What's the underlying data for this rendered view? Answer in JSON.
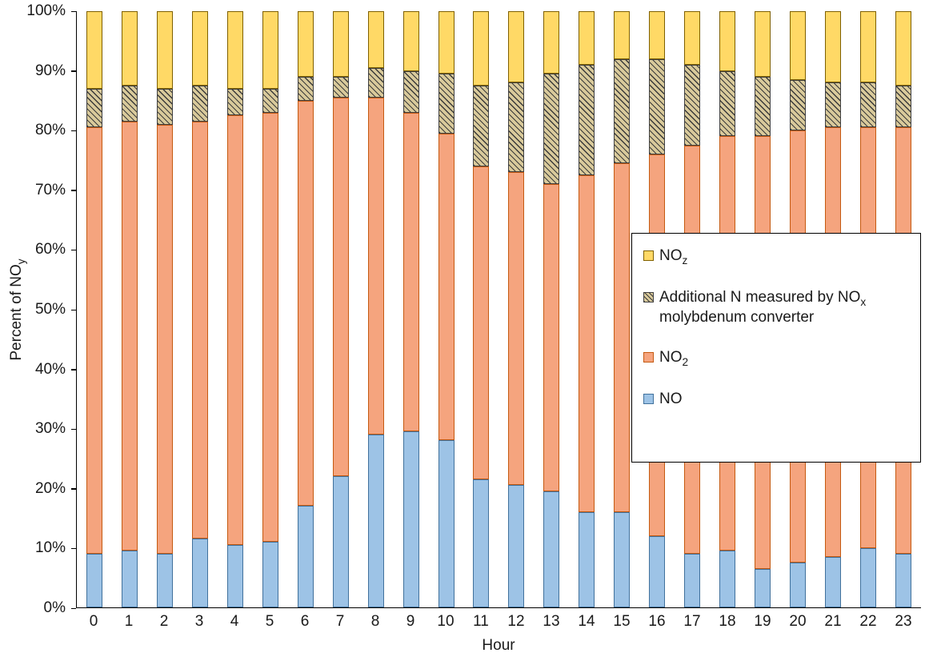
{
  "axes": {
    "x_title": "Hour",
    "y_title_pre": "Percent of NO",
    "y_title_sub": "y"
  },
  "legend": {
    "position": "right-overlay",
    "items": [
      {
        "key": "noz",
        "pre": "NO",
        "sub": "z",
        "post": "",
        "color": "#FFD966"
      },
      {
        "key": "addn",
        "pre": "Additional N measured by NO",
        "sub": "x",
        "post": " molybdenum converter",
        "color": "#D9CA9B",
        "pattern": "diagonal-hatch"
      },
      {
        "key": "no2",
        "pre": "NO",
        "sub": "2",
        "post": "",
        "color": "#F5A47E"
      },
      {
        "key": "no",
        "pre": "NO",
        "sub": "",
        "post": "",
        "color": "#9DC3E6"
      }
    ]
  },
  "chart_data": {
    "type": "bar",
    "subtype": "stacked-100-percent",
    "xlabel": "Hour",
    "ylabel": "Percent of NOy",
    "ylim": [
      0,
      100
    ],
    "grid": false,
    "yticks": [
      "0%",
      "10%",
      "20%",
      "30%",
      "40%",
      "50%",
      "60%",
      "70%",
      "80%",
      "90%",
      "100%"
    ],
    "categories": [
      "0",
      "1",
      "2",
      "3",
      "4",
      "5",
      "6",
      "7",
      "8",
      "9",
      "10",
      "11",
      "12",
      "13",
      "14",
      "15",
      "16",
      "17",
      "18",
      "19",
      "20",
      "21",
      "22",
      "23"
    ],
    "series": [
      {
        "name": "NO",
        "key": "no",
        "color": "#9DC3E6",
        "border": "#41719C",
        "values": [
          9,
          9.5,
          9,
          11.5,
          10.5,
          11,
          17,
          22,
          29,
          29.5,
          28,
          21.5,
          20.5,
          19.5,
          16,
          16,
          12,
          9,
          9.5,
          6.5,
          7.5,
          8.5,
          10,
          9
        ]
      },
      {
        "name": "NO2",
        "key": "no2",
        "color": "#F5A47E",
        "border": "#C55A11",
        "values": [
          71.5,
          72,
          72,
          70,
          72,
          72,
          68,
          63.5,
          56.5,
          53.5,
          51.5,
          52.5,
          52.5,
          51.5,
          56.5,
          58.5,
          64,
          68.5,
          69.5,
          72.5,
          72.5,
          72,
          70.5,
          71.5
        ]
      },
      {
        "name": "Additional N measured by NOx molybdenum converter",
        "key": "addn",
        "color": "#D9CA9B",
        "border": "#404040",
        "pattern": "diagonal-hatch",
        "values": [
          6.5,
          6,
          6,
          6,
          4.5,
          4,
          4,
          3.5,
          5,
          7,
          10,
          13.5,
          15,
          18.5,
          18.5,
          17.5,
          16,
          13.5,
          11,
          10,
          8.5,
          7.5,
          7.5,
          7
        ]
      },
      {
        "name": "NOz",
        "key": "noz",
        "color": "#FFD966",
        "border": "#7F6000",
        "values": [
          13,
          12.5,
          13,
          12.5,
          13,
          13,
          11,
          11,
          9.5,
          10,
          10.5,
          12.5,
          12,
          10.5,
          9,
          8,
          8,
          9,
          10,
          11,
          11.5,
          12,
          12,
          12.5
        ]
      }
    ]
  }
}
